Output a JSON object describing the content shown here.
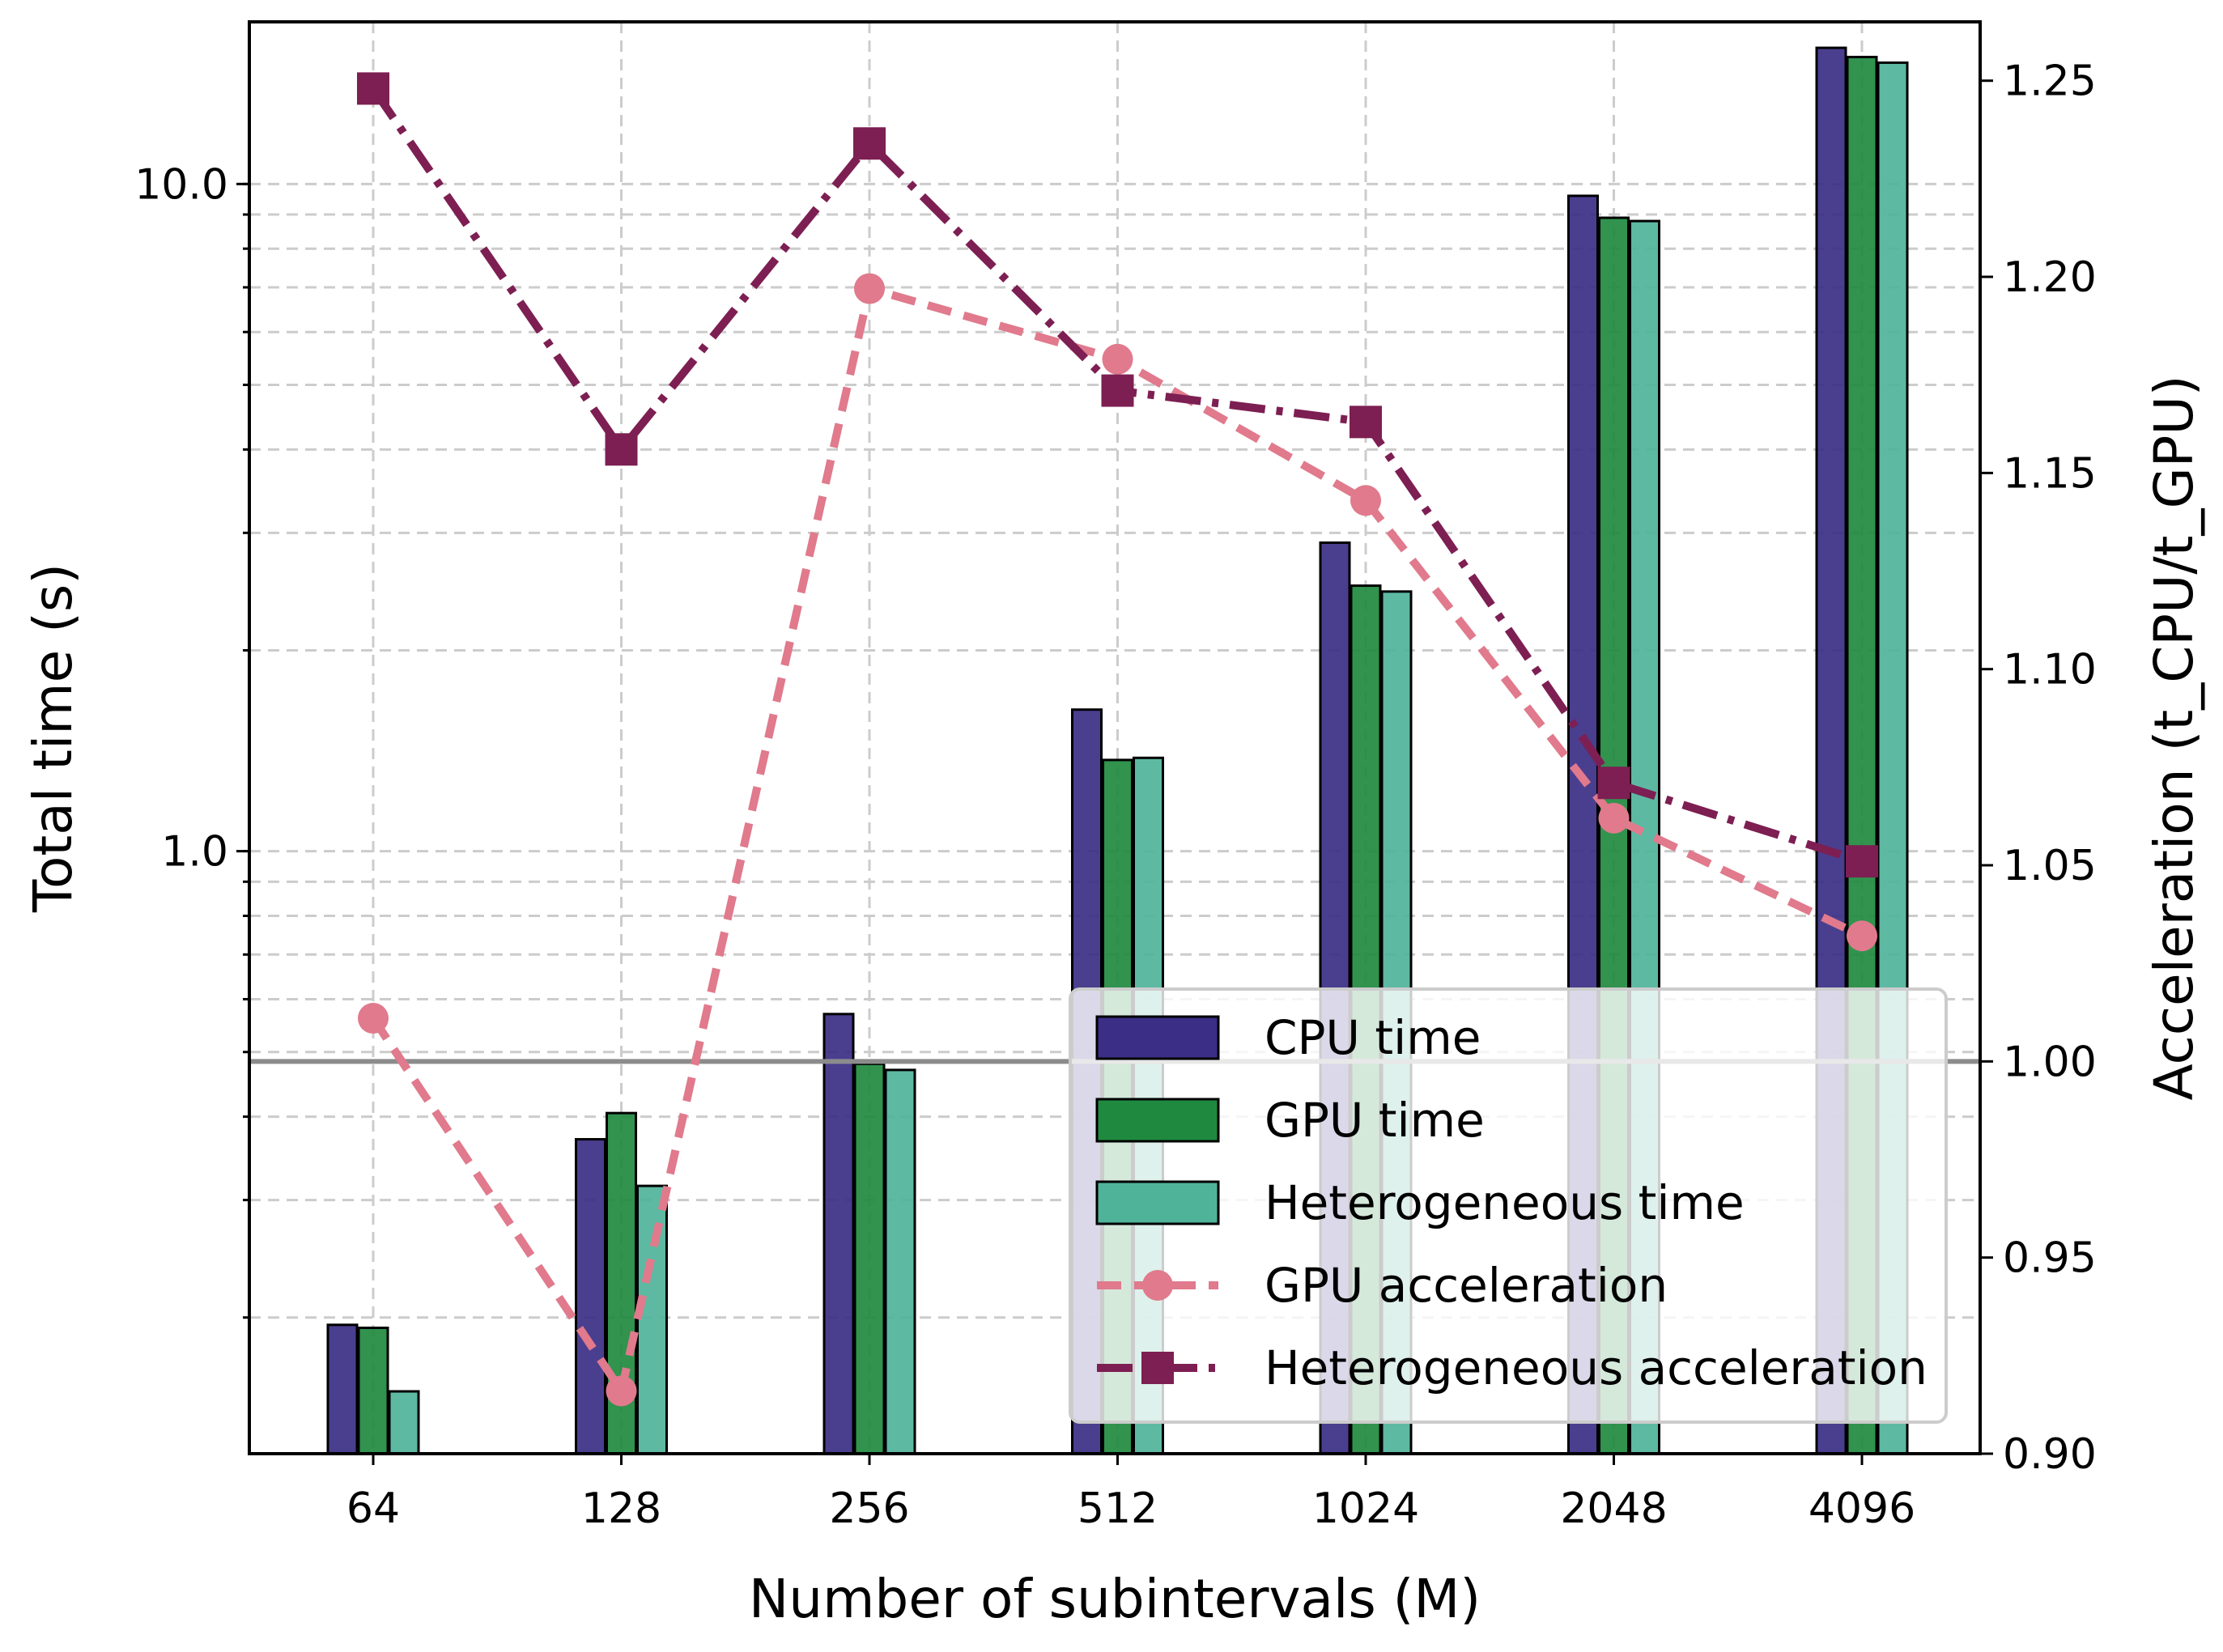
{
  "colors": {
    "cpu": "#3b2e86",
    "gpu": "#1f8a3f",
    "het": "#4fb39a",
    "gpu_acc": "#e07a8c",
    "het_acc": "#7d1f52",
    "reference": "#8c8c8c",
    "grid": "#cccccc"
  },
  "chart_data": {
    "type": "bar+line (dual axis)",
    "categories": [
      "64",
      "128",
      "256",
      "512",
      "1024",
      "2048",
      "4096"
    ],
    "xlabel": "Number of subintervals (M)",
    "ylabel_left": "Total time (s)",
    "ylabel_right": "Acceleration (t_CPU/t_GPU)",
    "left_axis": {
      "scale": "log",
      "ylim": [
        0.125,
        17.5
      ],
      "tick_labels": [
        "1.0",
        "10.0"
      ],
      "tick_values": [
        1.0,
        10.0
      ]
    },
    "right_axis": {
      "scale": "linear",
      "ylim": [
        0.9,
        1.265
      ],
      "tick_labels": [
        "0.90",
        "0.95",
        "1.00",
        "1.05",
        "1.10",
        "1.15",
        "1.20",
        "1.25"
      ],
      "tick_values": [
        0.9,
        0.95,
        1.0,
        1.05,
        1.1,
        1.15,
        1.2,
        1.25
      ]
    },
    "reference_line": 1.0,
    "bar_series": [
      {
        "name": "CPU time",
        "color_key": "cpu",
        "values": [
          0.195,
          0.37,
          0.57,
          1.63,
          2.9,
          9.6,
          16.0
        ]
      },
      {
        "name": "GPU time",
        "color_key": "gpu",
        "values": [
          0.193,
          0.405,
          0.48,
          1.37,
          2.5,
          8.9,
          15.5
        ]
      },
      {
        "name": "Heterogeneous time",
        "color_key": "het",
        "values": [
          0.155,
          0.315,
          0.47,
          1.38,
          2.45,
          8.8,
          15.2
        ]
      }
    ],
    "line_series": [
      {
        "name": "GPU acceleration",
        "color_key": "gpu_acc",
        "marker": "circle",
        "linestyle": "dashed",
        "values": [
          1.011,
          0.916,
          1.197,
          1.179,
          1.143,
          1.062,
          1.032
        ]
      },
      {
        "name": "Heterogeneous acceleration",
        "color_key": "het_acc",
        "marker": "square",
        "linestyle": "dashdot",
        "values": [
          1.248,
          1.156,
          1.234,
          1.171,
          1.163,
          1.071,
          1.051
        ]
      }
    ],
    "legend": {
      "placement": "lower-right",
      "entries": [
        "CPU time",
        "GPU time",
        "Heterogeneous time",
        "GPU acceleration",
        "Heterogeneous acceleration"
      ]
    }
  }
}
